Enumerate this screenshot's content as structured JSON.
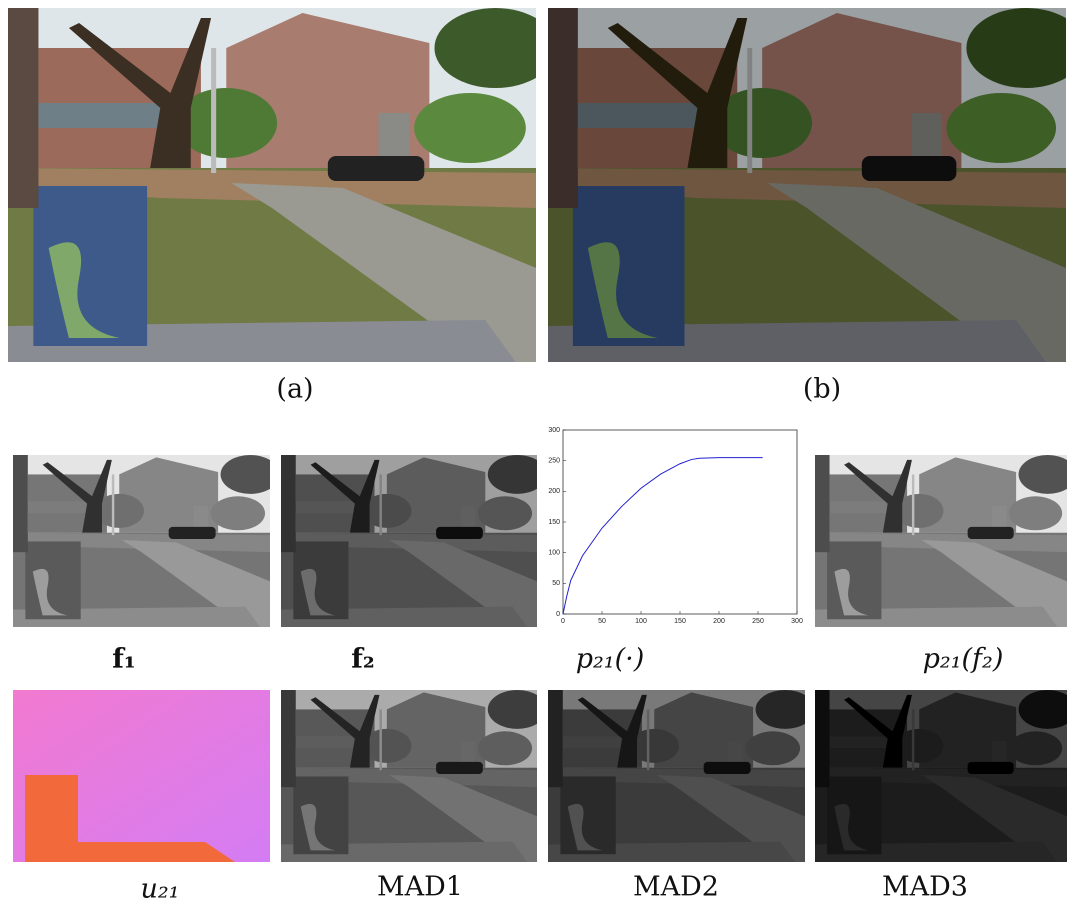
{
  "captions": [
    "(a)",
    "(b)",
    "f₁",
    "f₂",
    "p₂₁(·)",
    "p₂₁(f₂)",
    "u₂₁",
    "MAD1",
    "MAD2",
    "MAD3"
  ],
  "chart_data": {
    "type": "line",
    "x": [
      0,
      5,
      10,
      25,
      50,
      75,
      100,
      125,
      150,
      165,
      175,
      200,
      225,
      256
    ],
    "values": [
      0,
      30,
      55,
      95,
      140,
      175,
      205,
      228,
      245,
      252,
      254,
      255,
      255,
      255
    ],
    "color": "#2020d0",
    "xlim": [
      0,
      300
    ],
    "xticks": [
      0,
      50,
      100,
      150,
      200,
      250,
      300
    ],
    "ylim": [
      0,
      300
    ],
    "yticks": [
      0,
      50,
      100,
      150,
      200,
      250,
      300
    ]
  }
}
